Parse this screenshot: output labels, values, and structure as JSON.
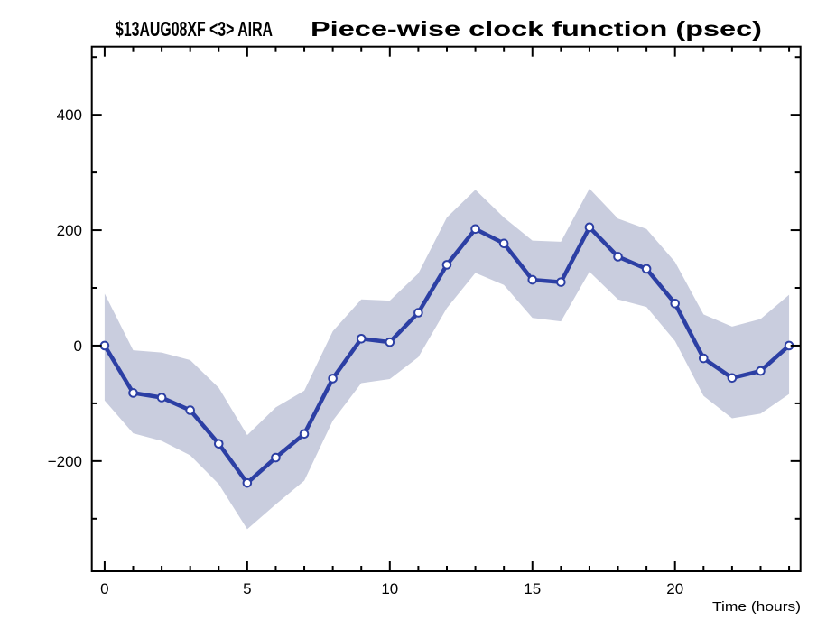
{
  "title_left": "$13AUG08XF <3>   AIRA",
  "title_right": "Piece-wise clock function (psec)",
  "colors": {
    "line": "#2c3fa4",
    "band": "#c9cdde",
    "marker_fill": "#ffffff",
    "axis": "#000000",
    "background": "#ffffff"
  },
  "chart_data": {
    "type": "line",
    "title": "$13AUG08XF <3>   AIRA      Piece-wise clock function (psec)",
    "xlabel": "Time (hours)",
    "ylabel": "",
    "x": [
      0,
      1,
      2,
      3,
      4,
      5,
      6,
      7,
      8,
      9,
      10,
      11,
      12,
      13,
      14,
      15,
      16,
      17,
      18,
      19,
      20,
      21,
      22,
      23,
      24
    ],
    "series": [
      {
        "name": "piece-wise clock function (psec)",
        "values": [
          0,
          -82,
          -90,
          -112,
          -170,
          -238,
          -194,
          -153,
          -57,
          12,
          6,
          57,
          140,
          202,
          177,
          114,
          110,
          205,
          154,
          133,
          73,
          -22,
          -56,
          -44,
          0
        ]
      }
    ],
    "band": {
      "name": "uncertainty envelope",
      "upper": [
        90,
        -8,
        -12,
        -25,
        -73,
        -155,
        -107,
        -78,
        25,
        80,
        78,
        125,
        222,
        270,
        222,
        182,
        180,
        272,
        220,
        202,
        145,
        54,
        33,
        46,
        88
      ],
      "lower": [
        -95,
        -152,
        -165,
        -190,
        -240,
        -318,
        -275,
        -234,
        -130,
        -65,
        -58,
        -20,
        65,
        126,
        105,
        48,
        42,
        128,
        80,
        67,
        8,
        -87,
        -126,
        -118,
        -84
      ]
    },
    "xlim": [
      -0.45,
      24.4
    ],
    "ylim": [
      -391,
      518
    ],
    "x_major_ticks": [
      0,
      5,
      10,
      15,
      20
    ],
    "x_major_labels": [
      "0",
      "5",
      "10",
      "15",
      "20"
    ],
    "x_minor_step": 1,
    "x_minor_range": [
      0,
      24
    ],
    "y_major_ticks": [
      -200,
      0,
      200,
      400
    ],
    "y_major_labels": [
      "−200",
      "0",
      "200",
      "400"
    ],
    "y_minor_step": 100,
    "y_minor_range": [
      -300,
      500
    ],
    "grid": false,
    "legend": "none",
    "marker": "circle"
  }
}
